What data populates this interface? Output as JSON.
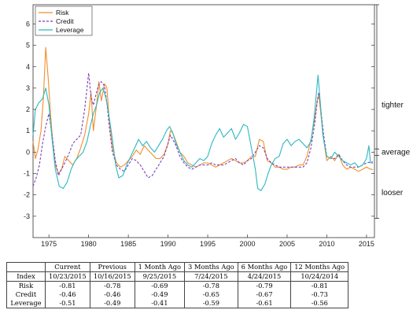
{
  "chart_data": {
    "type": "line",
    "x_axis": {
      "ticks": [
        "1975",
        "1980",
        "1985",
        "1990",
        "1995",
        "2000",
        "2005",
        "2010",
        "2015"
      ],
      "range": [
        1973,
        2016
      ]
    },
    "y_axis": {
      "ticks": [
        "6",
        "5",
        "4",
        "3",
        "2",
        "1",
        "0",
        "-1",
        "-2",
        "-3"
      ],
      "range": [
        -4,
        6.9
      ]
    },
    "side_labels": {
      "tighter": "tighter",
      "average": "average",
      "looser": "looser"
    },
    "legend": {
      "position": "top-left",
      "entries": [
        "Risk",
        "Credit",
        "Leverage"
      ]
    },
    "series": [
      {
        "name": "Risk",
        "color": "#f28e2b",
        "dash": "solid",
        "points": [
          [
            1973,
            0.5
          ],
          [
            1973.3,
            -0.3
          ],
          [
            1973.6,
            0.1
          ],
          [
            1974,
            1.0
          ],
          [
            1974.3,
            2.5
          ],
          [
            1974.6,
            4.9
          ],
          [
            1974.9,
            3.5
          ],
          [
            1975.2,
            1.8
          ],
          [
            1975.5,
            0.4
          ],
          [
            1975.8,
            -0.6
          ],
          [
            1976.2,
            -1.0
          ],
          [
            1976.6,
            -0.8
          ],
          [
            1977,
            -0.2
          ],
          [
            1977.5,
            -0.4
          ],
          [
            1978,
            -0.6
          ],
          [
            1978.5,
            -0.3
          ],
          [
            1979,
            0.2
          ],
          [
            1979.5,
            0.8
          ],
          [
            1980,
            1.8
          ],
          [
            1980.3,
            2.8
          ],
          [
            1980.6,
            1.0
          ],
          [
            1981,
            2.2
          ],
          [
            1981.3,
            3.3
          ],
          [
            1981.6,
            2.4
          ],
          [
            1982,
            3.2
          ],
          [
            1982.3,
            3.0
          ],
          [
            1982.6,
            1.5
          ],
          [
            1983,
            0.2
          ],
          [
            1983.5,
            -0.5
          ],
          [
            1984,
            -0.7
          ],
          [
            1984.5,
            -0.6
          ],
          [
            1985,
            -0.4
          ],
          [
            1985.5,
            -0.2
          ],
          [
            1986,
            0.1
          ],
          [
            1986.5,
            -0.1
          ],
          [
            1987,
            0.3
          ],
          [
            1987.5,
            0.1
          ],
          [
            1988,
            -0.1
          ],
          [
            1988.5,
            -0.3
          ],
          [
            1989,
            -0.3
          ],
          [
            1989.5,
            -0.1
          ],
          [
            1990,
            0.4
          ],
          [
            1990.3,
            1.0
          ],
          [
            1990.6,
            0.9
          ],
          [
            1991,
            0.5
          ],
          [
            1991.5,
            0.0
          ],
          [
            1992,
            -0.2
          ],
          [
            1992.5,
            -0.5
          ],
          [
            1993,
            -0.6
          ],
          [
            1993.5,
            -0.7
          ],
          [
            1994,
            -0.6
          ],
          [
            1994.5,
            -0.5
          ],
          [
            1995,
            -0.5
          ],
          [
            1995.5,
            -0.6
          ],
          [
            1996,
            -0.7
          ],
          [
            1996.5,
            -0.6
          ],
          [
            1997,
            -0.5
          ],
          [
            1997.5,
            -0.4
          ],
          [
            1998,
            -0.3
          ],
          [
            1998.5,
            -0.4
          ],
          [
            1999,
            -0.5
          ],
          [
            1999.5,
            -0.5
          ],
          [
            2000,
            -0.4
          ],
          [
            2000.5,
            -0.2
          ],
          [
            2001,
            -0.2
          ],
          [
            2001.5,
            0.6
          ],
          [
            2002,
            0.5
          ],
          [
            2002.5,
            -0.4
          ],
          [
            2003,
            -0.5
          ],
          [
            2003.5,
            -0.7
          ],
          [
            2004,
            -0.7
          ],
          [
            2004.5,
            -0.8
          ],
          [
            2005,
            -0.8
          ],
          [
            2005.5,
            -0.7
          ],
          [
            2006,
            -0.7
          ],
          [
            2006.5,
            -0.6
          ],
          [
            2007,
            -0.6
          ],
          [
            2007.5,
            -0.2
          ],
          [
            2008,
            0.6
          ],
          [
            2008.5,
            1.6
          ],
          [
            2008.8,
            2.4
          ],
          [
            2009,
            2.7
          ],
          [
            2009.3,
            1.6
          ],
          [
            2009.6,
            0.6
          ],
          [
            2010,
            -0.4
          ],
          [
            2010.5,
            -0.2
          ],
          [
            2011,
            -0.4
          ],
          [
            2011.5,
            -0.1
          ],
          [
            2012,
            -0.6
          ],
          [
            2012.5,
            -0.8
          ],
          [
            2013,
            -0.7
          ],
          [
            2013.5,
            -0.8
          ],
          [
            2014,
            -0.9
          ],
          [
            2014.5,
            -0.8
          ],
          [
            2015,
            -0.7
          ],
          [
            2015.5,
            -0.8
          ],
          [
            2015.8,
            -0.81
          ]
        ]
      },
      {
        "name": "Credit",
        "color": "#7b3fbf",
        "dash": "dashed",
        "points": [
          [
            1973,
            -1.6
          ],
          [
            1973.4,
            -1.2
          ],
          [
            1973.8,
            -0.6
          ],
          [
            1974.2,
            0.4
          ],
          [
            1974.6,
            1.2
          ],
          [
            1975,
            1.8
          ],
          [
            1975.4,
            0.8
          ],
          [
            1975.8,
            -0.4
          ],
          [
            1976.2,
            -1.1
          ],
          [
            1976.6,
            -0.8
          ],
          [
            1977,
            -0.5
          ],
          [
            1977.5,
            -0.1
          ],
          [
            1978,
            0.4
          ],
          [
            1978.5,
            0.6
          ],
          [
            1979,
            0.8
          ],
          [
            1979.5,
            2.0
          ],
          [
            1980,
            3.7
          ],
          [
            1980.3,
            2.6
          ],
          [
            1980.6,
            2.2
          ],
          [
            1981,
            2.8
          ],
          [
            1981.3,
            3.2
          ],
          [
            1981.6,
            3.3
          ],
          [
            1982,
            3.1
          ],
          [
            1982.3,
            2.3
          ],
          [
            1982.6,
            1.2
          ],
          [
            1983,
            0.0
          ],
          [
            1983.5,
            -0.6
          ],
          [
            1984,
            -0.8
          ],
          [
            1984.5,
            -0.9
          ],
          [
            1985,
            -0.6
          ],
          [
            1985.5,
            -0.3
          ],
          [
            1986,
            -0.4
          ],
          [
            1986.5,
            -0.6
          ],
          [
            1987,
            -0.9
          ],
          [
            1987.5,
            -1.2
          ],
          [
            1988,
            -1.1
          ],
          [
            1988.5,
            -0.8
          ],
          [
            1989,
            -0.5
          ],
          [
            1989.5,
            -0.2
          ],
          [
            1990,
            0.4
          ],
          [
            1990.3,
            0.8
          ],
          [
            1990.6,
            0.6
          ],
          [
            1991,
            0.3
          ],
          [
            1991.5,
            -0.2
          ],
          [
            1992,
            -0.5
          ],
          [
            1992.5,
            -0.7
          ],
          [
            1993,
            -0.8
          ],
          [
            1993.5,
            -0.7
          ],
          [
            1994,
            -0.6
          ],
          [
            1994.5,
            -0.6
          ],
          [
            1995,
            -0.6
          ],
          [
            1995.5,
            -0.5
          ],
          [
            1996,
            -0.6
          ],
          [
            1996.5,
            -0.6
          ],
          [
            1997,
            -0.6
          ],
          [
            1997.5,
            -0.5
          ],
          [
            1998,
            -0.4
          ],
          [
            1998.5,
            -0.3
          ],
          [
            1999,
            -0.5
          ],
          [
            1999.5,
            -0.6
          ],
          [
            2000,
            -0.4
          ],
          [
            2000.5,
            -0.3
          ],
          [
            2001,
            0.0
          ],
          [
            2001.5,
            0.3
          ],
          [
            2002,
            0.2
          ],
          [
            2002.5,
            -0.3
          ],
          [
            2003,
            -0.5
          ],
          [
            2003.5,
            -0.6
          ],
          [
            2004,
            -0.7
          ],
          [
            2004.5,
            -0.7
          ],
          [
            2005,
            -0.7
          ],
          [
            2005.5,
            -0.7
          ],
          [
            2006,
            -0.7
          ],
          [
            2006.5,
            -0.7
          ],
          [
            2007,
            -0.7
          ],
          [
            2007.5,
            -0.5
          ],
          [
            2008,
            0.2
          ],
          [
            2008.5,
            1.4
          ],
          [
            2008.8,
            2.4
          ],
          [
            2009,
            2.8
          ],
          [
            2009.3,
            1.8
          ],
          [
            2009.6,
            0.8
          ],
          [
            2010,
            -0.2
          ],
          [
            2010.5,
            -0.3
          ],
          [
            2011,
            -0.3
          ],
          [
            2011.5,
            -0.1
          ],
          [
            2012,
            -0.4
          ],
          [
            2012.5,
            -0.6
          ],
          [
            2013,
            -0.7
          ],
          [
            2013.5,
            -0.7
          ],
          [
            2014,
            -0.7
          ],
          [
            2014.5,
            -0.6
          ],
          [
            2015,
            -0.5
          ],
          [
            2015.5,
            -0.46
          ],
          [
            2015.8,
            -0.46
          ]
        ]
      },
      {
        "name": "Leverage",
        "color": "#2bb8c2",
        "dash": "solid",
        "points": [
          [
            1973,
            0.8
          ],
          [
            1973.3,
            2.0
          ],
          [
            1973.7,
            2.3
          ],
          [
            1974.2,
            2.5
          ],
          [
            1974.6,
            3.0
          ],
          [
            1975,
            2.2
          ],
          [
            1975.4,
            0.6
          ],
          [
            1975.8,
            -0.8
          ],
          [
            1976.3,
            -1.6
          ],
          [
            1976.8,
            -1.7
          ],
          [
            1977.3,
            -1.4
          ],
          [
            1977.8,
            -0.8
          ],
          [
            1978.3,
            -0.4
          ],
          [
            1978.8,
            -0.2
          ],
          [
            1979.3,
            0.0
          ],
          [
            1979.8,
            0.5
          ],
          [
            1980.2,
            1.2
          ],
          [
            1980.6,
            1.8
          ],
          [
            1981,
            2.2
          ],
          [
            1981.4,
            2.8
          ],
          [
            1981.8,
            3.0
          ],
          [
            1982.2,
            2.5
          ],
          [
            1982.6,
            1.6
          ],
          [
            1983,
            0.6
          ],
          [
            1983.4,
            -0.6
          ],
          [
            1983.8,
            -1.2
          ],
          [
            1984.3,
            -1.1
          ],
          [
            1984.8,
            -0.6
          ],
          [
            1985.3,
            -0.2
          ],
          [
            1985.8,
            0.2
          ],
          [
            1986.3,
            0.6
          ],
          [
            1986.8,
            0.3
          ],
          [
            1987.3,
            0.5
          ],
          [
            1987.8,
            0.2
          ],
          [
            1988.3,
            0.0
          ],
          [
            1988.8,
            0.3
          ],
          [
            1989.3,
            0.6
          ],
          [
            1989.8,
            1.0
          ],
          [
            1990.2,
            1.2
          ],
          [
            1990.6,
            0.9
          ],
          [
            1991,
            0.4
          ],
          [
            1991.5,
            0.0
          ],
          [
            1992,
            -0.4
          ],
          [
            1992.5,
            -0.6
          ],
          [
            1993,
            -0.7
          ],
          [
            1993.5,
            -0.5
          ],
          [
            1994,
            -0.3
          ],
          [
            1994.5,
            -0.4
          ],
          [
            1995,
            -0.2
          ],
          [
            1995.5,
            0.4
          ],
          [
            1996,
            0.8
          ],
          [
            1996.5,
            1.1
          ],
          [
            1997,
            0.7
          ],
          [
            1997.5,
            0.9
          ],
          [
            1998,
            1.1
          ],
          [
            1998.5,
            0.6
          ],
          [
            1999,
            0.9
          ],
          [
            1999.5,
            1.3
          ],
          [
            2000,
            1.2
          ],
          [
            2000.5,
            0.2
          ],
          [
            2001,
            -0.8
          ],
          [
            2001.3,
            -1.7
          ],
          [
            2001.7,
            -1.8
          ],
          [
            2002.2,
            -1.5
          ],
          [
            2002.6,
            -1.0
          ],
          [
            2003,
            -0.6
          ],
          [
            2003.5,
            -0.3
          ],
          [
            2004,
            -0.2
          ],
          [
            2004.5,
            0.4
          ],
          [
            2005,
            0.6
          ],
          [
            2005.5,
            0.3
          ],
          [
            2006,
            0.5
          ],
          [
            2006.5,
            0.6
          ],
          [
            2007,
            0.4
          ],
          [
            2007.5,
            0.2
          ],
          [
            2008,
            0.5
          ],
          [
            2008.4,
            1.6
          ],
          [
            2008.7,
            2.8
          ],
          [
            2008.9,
            3.6
          ],
          [
            2009.2,
            2.2
          ],
          [
            2009.5,
            0.8
          ],
          [
            2010,
            -0.2
          ],
          [
            2010.5,
            -0.3
          ],
          [
            2011,
            0.0
          ],
          [
            2011.5,
            -0.2
          ],
          [
            2012,
            -0.4
          ],
          [
            2012.5,
            -0.5
          ],
          [
            2013,
            -0.6
          ],
          [
            2013.5,
            -0.5
          ],
          [
            2014,
            -0.7
          ],
          [
            2014.5,
            -0.6
          ],
          [
            2015,
            -0.3
          ],
          [
            2015.3,
            0.3
          ],
          [
            2015.5,
            -0.5
          ],
          [
            2015.8,
            -0.51
          ]
        ]
      }
    ]
  },
  "table": {
    "headers": [
      "",
      "Current",
      "Previous",
      "1 Month Ago",
      "3 Months Ago",
      "6 Months Ago",
      "12 Months Ago"
    ],
    "date_row": [
      "Index",
      "10/23/2015",
      "10/16/2015",
      "9/25/2015",
      "7/24/2015",
      "4/24/2015",
      "10/24/2014"
    ],
    "rows": [
      [
        "Risk",
        "-0.81",
        "-0.78",
        "-0.69",
        "-0.78",
        "-0.79",
        "-0.81"
      ],
      [
        "Credit",
        "-0.46",
        "-0.46",
        "-0.49",
        "-0.65",
        "-0.67",
        "-0.73"
      ],
      [
        "Leverage",
        "-0.51",
        "-0.49",
        "-0.41",
        "-0.59",
        "-0.61",
        "-0.56"
      ]
    ]
  }
}
